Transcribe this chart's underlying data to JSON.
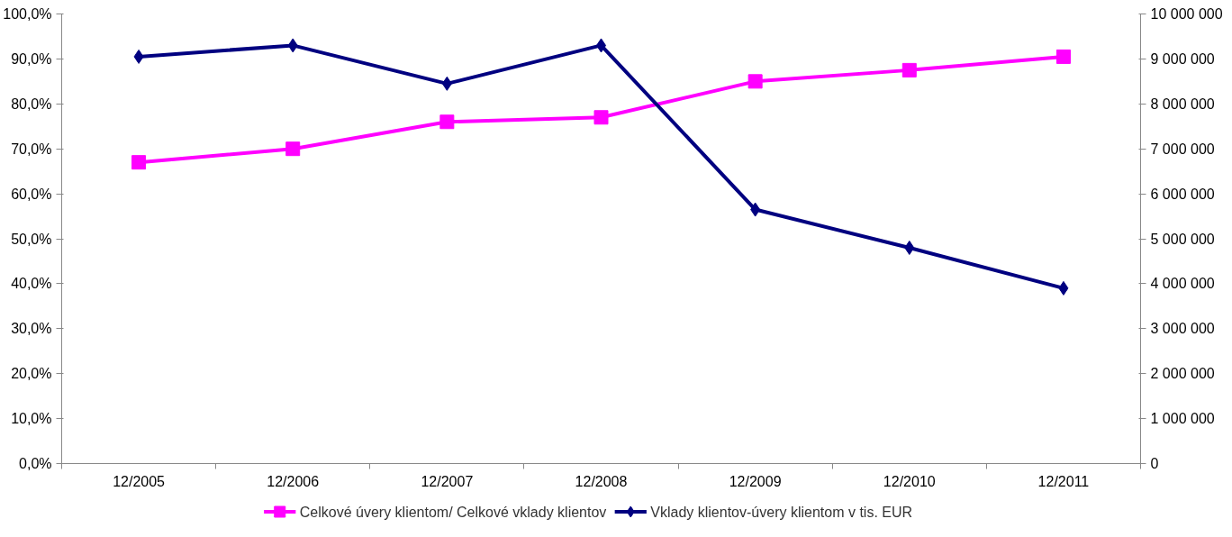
{
  "chart_data": {
    "type": "line",
    "categories": [
      "12/2005",
      "12/2006",
      "12/2007",
      "12/2008",
      "12/2009",
      "12/2010",
      "12/2011"
    ],
    "series": [
      {
        "name": "Celkové úvery klientom/ Celkové vklady klientov",
        "color": "#ff00ff",
        "marker": "square",
        "values": [
          67,
          70,
          76,
          77,
          85,
          87.5,
          90.5
        ]
      },
      {
        "name": "Vklady klientov-úvery klientom v tis. EUR",
        "color": "#000080",
        "marker": "diamond",
        "axis": "y2",
        "values": [
          9050000,
          9300000,
          8450000,
          9300000,
          5650000,
          4800000,
          3900000
        ]
      }
    ],
    "ylim": [
      0,
      100
    ],
    "yticks": [
      {
        "value": 0,
        "label": "0,0%"
      },
      {
        "value": 10,
        "label": "10,0%"
      },
      {
        "value": 20,
        "label": "20,0%"
      },
      {
        "value": 30,
        "label": "30,0%"
      },
      {
        "value": 40,
        "label": "40,0%"
      },
      {
        "value": 50,
        "label": "50,0%"
      },
      {
        "value": 60,
        "label": "60,0%"
      },
      {
        "value": 70,
        "label": "70,0%"
      },
      {
        "value": 80,
        "label": "80,0%"
      },
      {
        "value": 90,
        "label": "90,0%"
      },
      {
        "value": 100,
        "label": "100,0%"
      }
    ],
    "y2lim": [
      0,
      10000000
    ],
    "y2ticks": [
      0,
      {
        "value": 1000000,
        "label": "1 000 000"
      },
      {
        "value": 2000000,
        "label": "2 000 000"
      },
      {
        "value": 3000000,
        "label": "3 000 000"
      },
      {
        "value": 4000000,
        "label": "4 000 000"
      },
      {
        "value": 5000000,
        "label": "5 000 000"
      },
      {
        "value": 6000000,
        "label": "6 000 000"
      },
      {
        "value": 7000000,
        "label": "7 000 000"
      },
      {
        "value": 8000000,
        "label": "8 000 000"
      },
      {
        "value": 9000000,
        "label": "9 000 000"
      },
      {
        "value": 10000000,
        "label": "10 000 000"
      }
    ],
    "grid": false,
    "legend": "bottom",
    "line_style": "solid"
  }
}
